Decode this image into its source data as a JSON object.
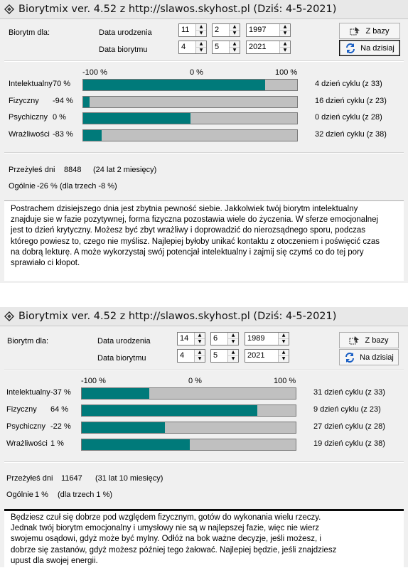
{
  "windows": [
    {
      "title": "Biorytmix ver. 4.52 z http://slawos.skyhost.pl (Dziś: 4-5-2021)",
      "biorytm_for_label": "Biorytm dla:",
      "birth_date_label": "Data urodzenia",
      "biorhythm_date_label": "Data biorytmu",
      "birth_day": "11",
      "birth_month": "2",
      "birth_year": "1997",
      "bio_day": "4",
      "bio_month": "5",
      "bio_year": "2021",
      "z_bazy_label": "Z bazy",
      "na_dzisiaj_label": "Na dzisiaj",
      "scale_left": "-100 %",
      "scale_mid": "0 %",
      "scale_right": "100 %",
      "rows": [
        {
          "name": "Intelektualny",
          "percent_text": "70 %",
          "value": 70,
          "cycle": "4 dzień cyklu (z 33)"
        },
        {
          "name": "Fizyczny",
          "percent_text": "-94 %",
          "value": -94,
          "cycle": "16 dzień cyklu (z 23)"
        },
        {
          "name": "Psychiczny",
          "percent_text": "0 %",
          "value": 0,
          "cycle": "0 dzień cyklu (z 28)"
        },
        {
          "name": "Wrażliwości",
          "percent_text": "-83 %",
          "value": -83,
          "cycle": "32 dzień cyklu (z 38)"
        }
      ],
      "lived_label": "Przeżyłeś dni",
      "lived_days": "8848",
      "lived_span": "(24 lat 2 miesięcy)",
      "overall_label": "Ogólnie",
      "overall_value": "-26 %",
      "overall_three": "(dla trzech -8 %)",
      "description": "Postrachem dzisiejszego dnia jest zbytnia pewność siebie. Jakkolwiek twój biorytm intelektualny znajduje sie w fazie pozytywnej, forma fizyczna pozostawia wiele do życzenia. W sferze emocjonalnej jest to dzień krytyczny. Możesz być zbyt wrażliwy i doprowadzić do nierozsądnego sporu, podczas którego powiesz to, czego nie myślisz. Najlepiej byłoby unikać kontaktu z otoczeniem i poświęcić czas na dobrą lekturę. A może wykorzystaj swój potencjał intelektualny i zajmij się czymś co do tej pory sprawiało ci kłopot."
    },
    {
      "title": "Biorytmix ver. 4.52 z http://slawos.skyhost.pl (Dziś: 4-5-2021)",
      "biorytm_for_label": "Biorytm dla:",
      "birth_date_label": "Data urodzenia",
      "biorhythm_date_label": "Data biorytmu",
      "birth_day": "14",
      "birth_month": "6",
      "birth_year": "1989",
      "bio_day": "4",
      "bio_month": "5",
      "bio_year": "2021",
      "z_bazy_label": "Z bazy",
      "na_dzisiaj_label": "Na dzisiaj",
      "scale_left": "-100 %",
      "scale_mid": "0 %",
      "scale_right": "100 %",
      "rows": [
        {
          "name": "Intelektualny",
          "percent_text": "-37 %",
          "value": -37,
          "cycle": "31 dzień cyklu (z 33)"
        },
        {
          "name": "Fizyczny",
          "percent_text": "64 %",
          "value": 64,
          "cycle": "9 dzień cyklu (z 23)"
        },
        {
          "name": "Psychiczny",
          "percent_text": "-22 %",
          "value": -22,
          "cycle": "27 dzień cyklu (z 28)"
        },
        {
          "name": "Wrażliwości",
          "percent_text": "1 %",
          "value": 1,
          "cycle": "19 dzień cyklu (z 38)"
        }
      ],
      "lived_label": "Przeżyłeś dni",
      "lived_days": "11647",
      "lived_span": "(31 lat 10 miesięcy)",
      "overall_label": "Ogólnie",
      "overall_value": "1 %",
      "overall_three": "(dla trzech 1 %)",
      "description": "Będziesz czuł się dobrze pod względem fizycznym, gotów do wykonania wielu rzeczy. Jednak twój biorytm emocjonalny i umysłowy nie są w najlepszej fazie, więc nie wierz swojemu osądowi, gdyż może być mylny. Odłóż na bok ważne decyzje, jeśli możesz, i dobrze się zastanów, gdyż możesz później tego żałować. Najlepiej będzie, jeśli znajdziesz upust dla swojej energii."
    }
  ]
}
